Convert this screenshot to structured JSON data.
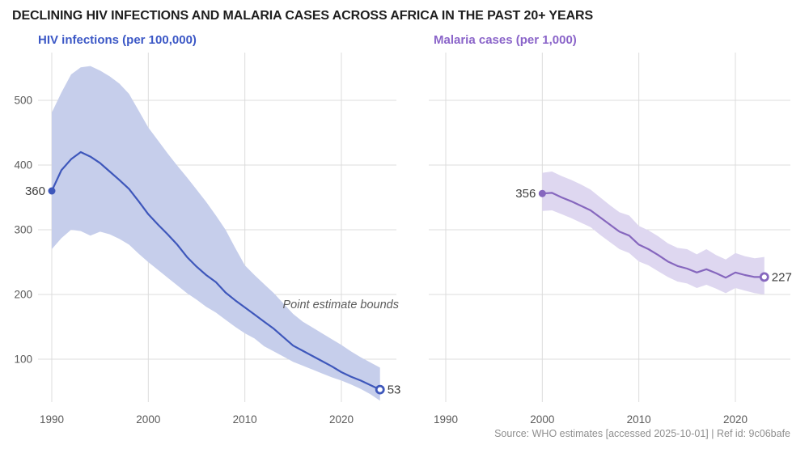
{
  "title": "DECLINING HIV INFECTIONS AND MALARIA CASES ACROSS AFRICA IN THE PAST 20+ YEARS",
  "annotation": "Point estimate bounds",
  "footer": "Source: WHO estimates [accessed 2025-10-01] | Ref id: 9c06bafe",
  "colors": {
    "hiv_line": "#3e57bb",
    "hiv_band": "#c6ceeb",
    "hiv_title": "#3c58c6",
    "malaria_line": "#8667be",
    "malaria_band": "#ded7f0",
    "malaria_title": "#8a64c9",
    "gridline": "#dcdcdc",
    "tick_label": "#5a5a5a",
    "value_label": "#3e3e3e"
  },
  "chart_data": [
    {
      "type": "line",
      "title": "HIV infections (per 100,000)",
      "line_color": "#3e57bb",
      "band_color": "#c6ceeb",
      "title_color": "#3c58c6",
      "x_ticks": [
        "1990",
        "2000",
        "2010",
        "2020"
      ],
      "y_ticks": [
        "100",
        "200",
        "300",
        "400",
        "500"
      ],
      "ylim": [
        34,
        574
      ],
      "xlim": [
        1988.6,
        2025.7
      ],
      "start_label": "360",
      "end_label": "53",
      "x": [
        1990,
        1991,
        1992,
        1993,
        1994,
        1995,
        1996,
        1997,
        1998,
        1999,
        2000,
        2001,
        2002,
        2003,
        2004,
        2005,
        2006,
        2007,
        2008,
        2009,
        2010,
        2011,
        2012,
        2013,
        2014,
        2015,
        2016,
        2017,
        2018,
        2019,
        2020,
        2021,
        2022,
        2023,
        2024
      ],
      "series": [
        {
          "name": "HIV infections point estimate",
          "values": [
            360,
            392,
            409,
            420,
            413,
            403,
            390,
            377,
            363,
            344,
            324,
            308,
            293,
            277,
            258,
            243,
            230,
            219,
            203,
            191,
            180,
            169,
            158,
            147,
            134,
            121,
            113,
            105,
            97,
            89,
            80,
            73,
            67,
            60,
            53
          ]
        }
      ],
      "band": {
        "name": "Point estimate bounds",
        "upper": [
          481,
          512,
          540,
          551,
          553,
          546,
          537,
          526,
          510,
          484,
          458,
          438,
          418,
          399,
          381,
          362,
          343,
          322,
          300,
          272,
          245,
          230,
          216,
          202,
          186,
          170,
          158,
          149,
          140,
          131,
          122,
          112,
          103,
          95,
          87
        ],
        "lower": [
          270,
          287,
          300,
          298,
          291,
          297,
          293,
          286,
          277,
          263,
          250,
          238,
          226,
          214,
          202,
          192,
          181,
          172,
          161,
          150,
          140,
          132,
          120,
          112,
          104,
          96,
          90,
          84,
          78,
          72,
          67,
          61,
          54,
          46,
          36
        ]
      }
    },
    {
      "type": "line",
      "title": "Malaria cases (per 1,000)",
      "line_color": "#8667be",
      "band_color": "#ded7f0",
      "title_color": "#8a64c9",
      "x_ticks": [
        "1990",
        "2000",
        "2010",
        "2020"
      ],
      "y_ticks": [],
      "ylim": [
        34,
        574
      ],
      "xlim": [
        1988.2,
        2025.7
      ],
      "start_label": "356",
      "end_label": "227",
      "x": [
        2000,
        2001,
        2002,
        2003,
        2004,
        2005,
        2006,
        2007,
        2008,
        2009,
        2010,
        2011,
        2012,
        2013,
        2014,
        2015,
        2016,
        2017,
        2018,
        2019,
        2020,
        2021,
        2022,
        2023
      ],
      "series": [
        {
          "name": "Malaria cases point estimate",
          "values": [
            356,
            357,
            350,
            344,
            337,
            330,
            319,
            308,
            297,
            291,
            277,
            270,
            261,
            251,
            244,
            240,
            234,
            239,
            233,
            226,
            234,
            230,
            227,
            227
          ]
        }
      ],
      "band": {
        "name": "Point estimate bounds",
        "upper": [
          388,
          390,
          383,
          377,
          370,
          362,
          350,
          338,
          327,
          322,
          306,
          299,
          290,
          279,
          272,
          270,
          262,
          270,
          261,
          254,
          264,
          259,
          256,
          258
        ],
        "lower": [
          329,
          330,
          324,
          318,
          311,
          304,
          292,
          281,
          270,
          264,
          251,
          245,
          236,
          227,
          220,
          217,
          210,
          215,
          209,
          202,
          210,
          206,
          202,
          200
        ]
      }
    }
  ]
}
